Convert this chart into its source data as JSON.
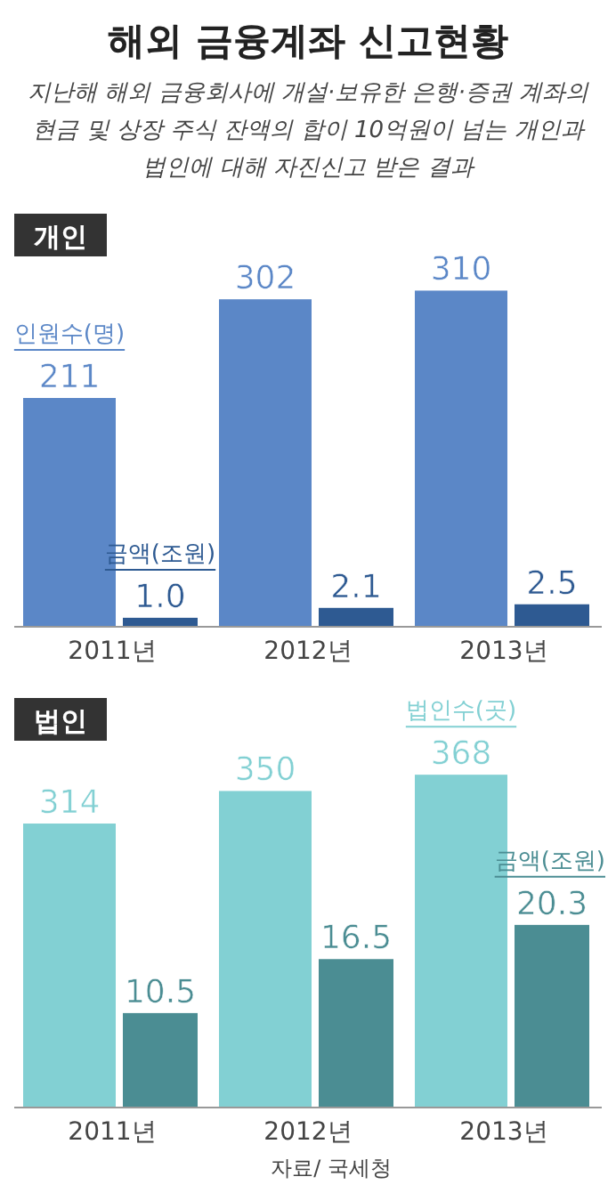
{
  "chart_data": [
    {
      "type": "bar",
      "title": "해외 금융계좌 신고현황",
      "subtitle": "지난해 해외 금융회사에 개설·보유한 은행·증권 계좌의 현금 및 상장 주식 잔액의 합이 10억원이 넘는 개인과 법인에 대해 자진신고 받은 결과",
      "annotations": [
        "개인"
      ],
      "categories": [
        "2011년",
        "2012년",
        "2013년"
      ],
      "series": [
        {
          "name": "인원수(명)",
          "color": "#5b87c7",
          "values": [
            211,
            302,
            310
          ],
          "value_labels": [
            "211",
            "302",
            "310"
          ]
        },
        {
          "name": "금액(조원)",
          "color": "#2e5a92",
          "axis": "y2",
          "values": [
            1.0,
            2.1,
            2.5
          ],
          "value_labels": [
            "1.0",
            "2.1",
            "2.5"
          ]
        }
      ],
      "tick_labels": "x"
    },
    {
      "type": "bar",
      "annotations": [
        "법인",
        "자료/ 국세청"
      ],
      "categories": [
        "2011년",
        "2012년",
        "2013년"
      ],
      "series": [
        {
          "name": "법인수(곳)",
          "color": "#82d0d3",
          "values": [
            314,
            350,
            368
          ],
          "value_labels": [
            "314",
            "350",
            "368"
          ]
        },
        {
          "name": "금액(조원)",
          "color": "#4b8d93",
          "axis": "y2",
          "values": [
            10.5,
            16.5,
            20.3
          ],
          "value_labels": [
            "10.5",
            "16.5",
            "20.3"
          ]
        }
      ],
      "tick_labels": "x"
    }
  ]
}
